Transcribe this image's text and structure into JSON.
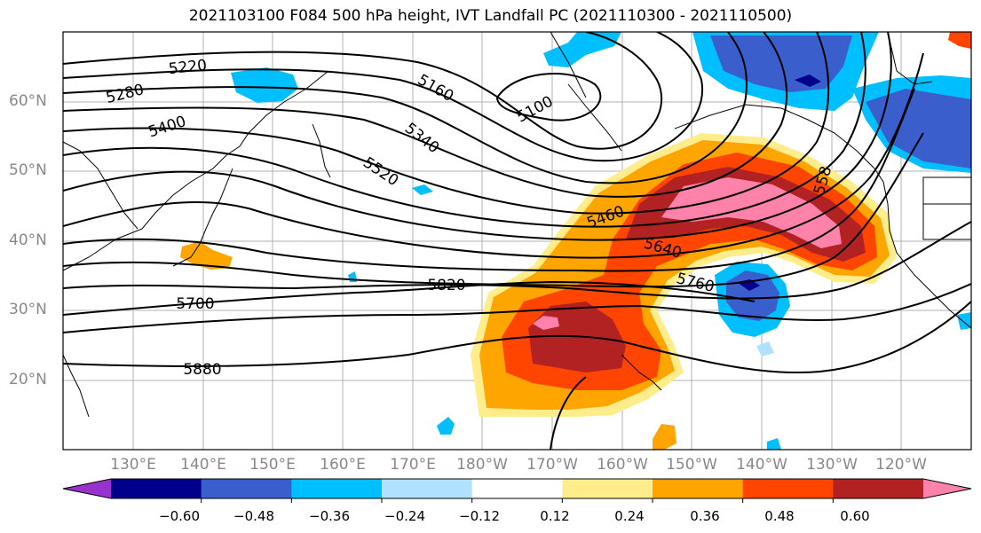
{
  "title": "2021103100 F084 500 hPa height, IVT Landfall PC (2021110300 - 2021110500)",
  "lat_labels": [
    "60°N",
    "50°N",
    "40°N",
    "30°N",
    "20°N"
  ],
  "lon_labels": [
    "130°E",
    "140°E",
    "150°E",
    "160°E",
    "170°E",
    "180°W",
    "170°W",
    "160°W",
    "150°W",
    "140°W",
    "130°W",
    "120°W"
  ],
  "contour_labels": [
    "5220",
    "5280",
    "5400",
    "5160",
    "5100",
    "5340",
    "5520",
    "5460",
    "5640",
    "5760",
    "5820",
    "5700",
    "5880",
    "558"
  ],
  "colorbar": {
    "ticks": [
      "−0.60",
      "−0.48",
      "−0.36",
      "−0.24",
      "−0.12",
      "0.12",
      "0.24",
      "0.36",
      "0.48",
      "0.60"
    ],
    "colors": [
      "#9932cc",
      "#00008b",
      "#3a5fcd",
      "#00bfff",
      "#b0e2ff",
      "#ffffff",
      "#ffec8b",
      "#ffa500",
      "#ff4500",
      "#b22222",
      "#ff82ab"
    ]
  }
}
